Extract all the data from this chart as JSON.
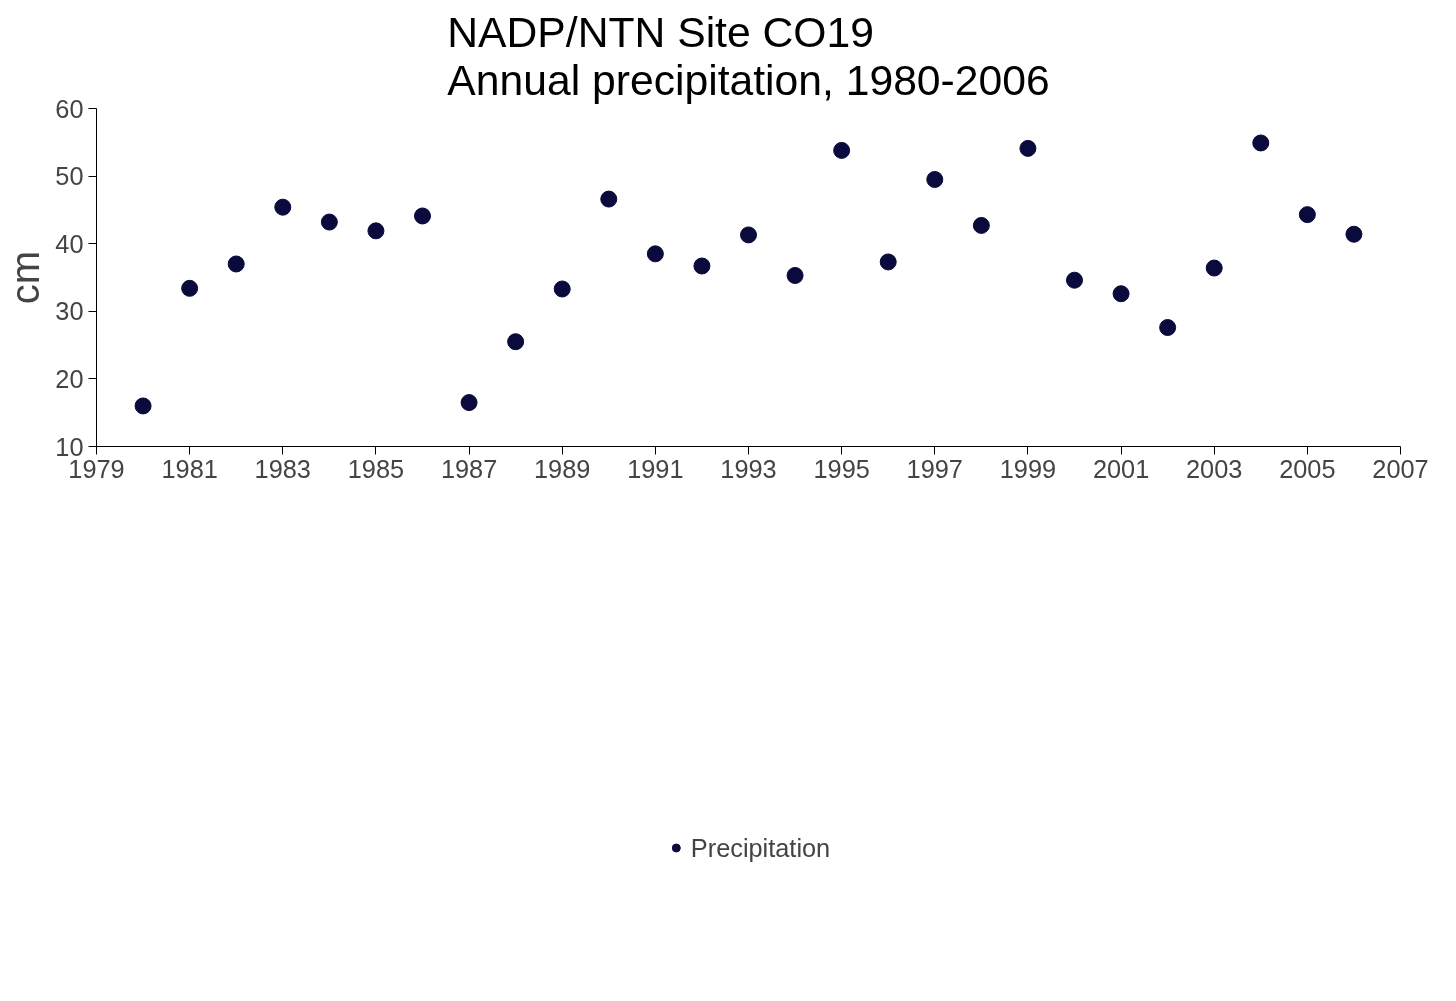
{
  "chart_data": {
    "type": "scatter",
    "title": "NADP/NTN Site CO19\nAnnual precipitation, 1980-2006",
    "ylabel": "cm",
    "x": [
      1980,
      1981,
      1982,
      1983,
      1984,
      1985,
      1986,
      1987,
      1988,
      1989,
      1990,
      1991,
      1992,
      1993,
      1994,
      1995,
      1996,
      1997,
      1998,
      1999,
      2000,
      2001,
      2002,
      2003,
      2004,
      2005,
      2006
    ],
    "series": [
      {
        "name": "Precipitation",
        "color": "#0a0a3c",
        "values": [
          16.0,
          33.4,
          37.0,
          45.4,
          43.2,
          41.9,
          44.1,
          16.5,
          25.5,
          33.3,
          46.6,
          38.5,
          36.7,
          41.3,
          35.3,
          53.8,
          37.3,
          49.5,
          42.7,
          54.1,
          34.6,
          32.6,
          27.6,
          36.4,
          54.9,
          44.3,
          41.4
        ]
      }
    ],
    "xlim": [
      1979,
      2007
    ],
    "xticks": [
      1979,
      1981,
      1983,
      1985,
      1987,
      1989,
      1991,
      1993,
      1995,
      1997,
      1999,
      2001,
      2003,
      2005,
      2007
    ],
    "ylim": [
      10,
      60
    ],
    "yticks": [
      10,
      20,
      30,
      40,
      50,
      60
    ],
    "grid": false,
    "legend": "bottom",
    "marker": "circle"
  }
}
